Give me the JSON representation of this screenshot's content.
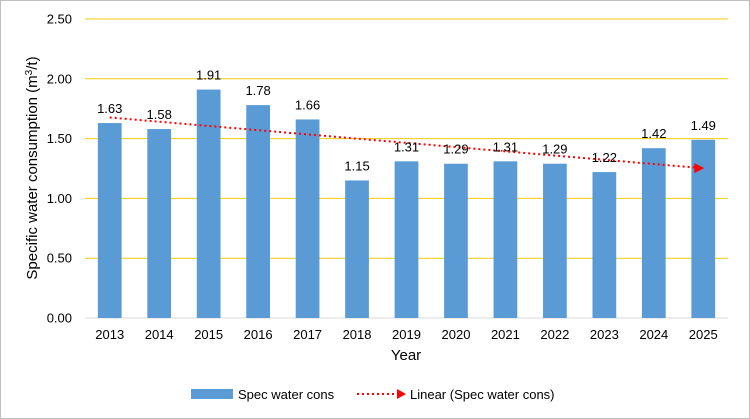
{
  "chart_data": {
    "type": "bar",
    "categories": [
      "2013",
      "2014",
      "2015",
      "2016",
      "2017",
      "2018",
      "2019",
      "2020",
      "2021",
      "2022",
      "2023",
      "2024",
      "2025"
    ],
    "series": [
      {
        "name": "Spec water cons",
        "values": [
          1.63,
          1.58,
          1.91,
          1.78,
          1.66,
          1.15,
          1.31,
          1.29,
          1.31,
          1.29,
          1.22,
          1.42,
          1.49
        ],
        "labels": [
          "1.63",
          "1.58",
          "1.91",
          "1.78",
          "1.66",
          "1.15",
          "1.31",
          "1.29",
          "1.31",
          "1.29",
          "1.22",
          "1.42",
          "1.49"
        ],
        "color": "#5B9BD5"
      }
    ],
    "trendline": {
      "name": "Linear (Spec water cons)",
      "type": "linear",
      "color": "#FF0000"
    },
    "xlabel": "Year",
    "ylabel_text": "Specific water consumption (m",
    "ylabel_sup": "3",
    "ylabel_tail": "/t)",
    "ylim": [
      0,
      2.5
    ],
    "yticks": [
      "0.00",
      "0.50",
      "1.00",
      "1.50",
      "2.00",
      "2.50"
    ],
    "ytick_values": [
      0,
      0.5,
      1.0,
      1.5,
      2.0,
      2.5
    ],
    "gridline_color": "#F2CC0C",
    "grid": true,
    "legend_position": "bottom"
  }
}
